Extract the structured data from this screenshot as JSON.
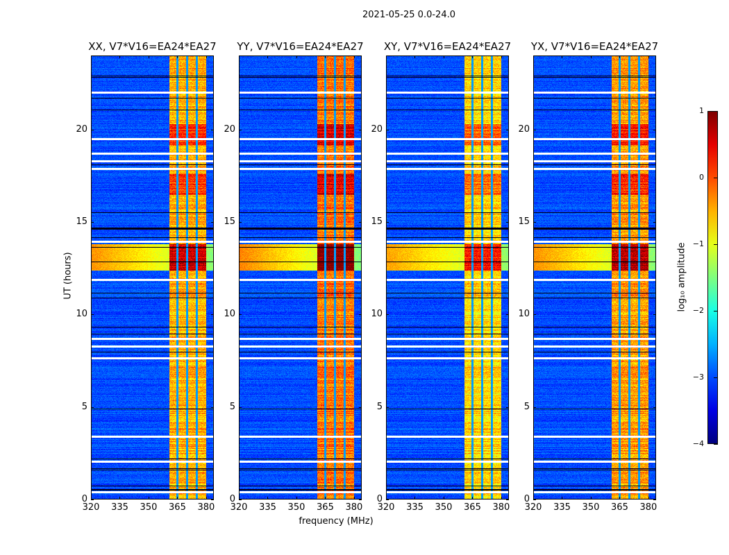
{
  "chart_data": {
    "type": "heatmap",
    "title": "2021-05-25 0.0-24.0",
    "xlabel": "frequency (MHz)",
    "ylabel": "UT (hours)",
    "xlim": [
      320,
      384
    ],
    "ylim": [
      0,
      24
    ],
    "xticks": [
      "320",
      "335",
      "350",
      "365",
      "380"
    ],
    "yticks": [
      "0",
      "5",
      "10",
      "15",
      "20"
    ],
    "panels": [
      {
        "title": "XX, V7*V16=EA24*EA27",
        "band_level": -0.6,
        "rfi_level": 0.9
      },
      {
        "title": "YY, V7*V16=EA24*EA27",
        "band_level": -0.3,
        "rfi_level": 1.0
      },
      {
        "title": "XY, V7*V16=EA24*EA27",
        "band_level": -0.8,
        "rfi_level": 0.8
      },
      {
        "title": "YX, V7*V16=EA24*EA27",
        "band_level": -0.5,
        "rfi_level": 0.9
      }
    ],
    "band_mhz": [
      360.6,
      380
    ],
    "channel_gaps_mhz": [
      365,
      370,
      375
    ],
    "background_level": -3,
    "strong_rfi_hours": [
      [
        12.4,
        13.8
      ],
      [
        16.5,
        17.6
      ],
      [
        19.2,
        20.3
      ]
    ],
    "flagged_hours": [
      0.4,
      2.05,
      3.4,
      7.65,
      8.3,
      8.7,
      11.9,
      13.95,
      17.9,
      18.3,
      18.7,
      19.5,
      22.0
    ],
    "colorbar": {
      "label": "log₁₀ amplitude",
      "colormap": "jet",
      "range": [
        -4,
        1
      ],
      "ticks": [
        "1",
        "0",
        "−1",
        "−2",
        "−3",
        "−4"
      ]
    }
  }
}
